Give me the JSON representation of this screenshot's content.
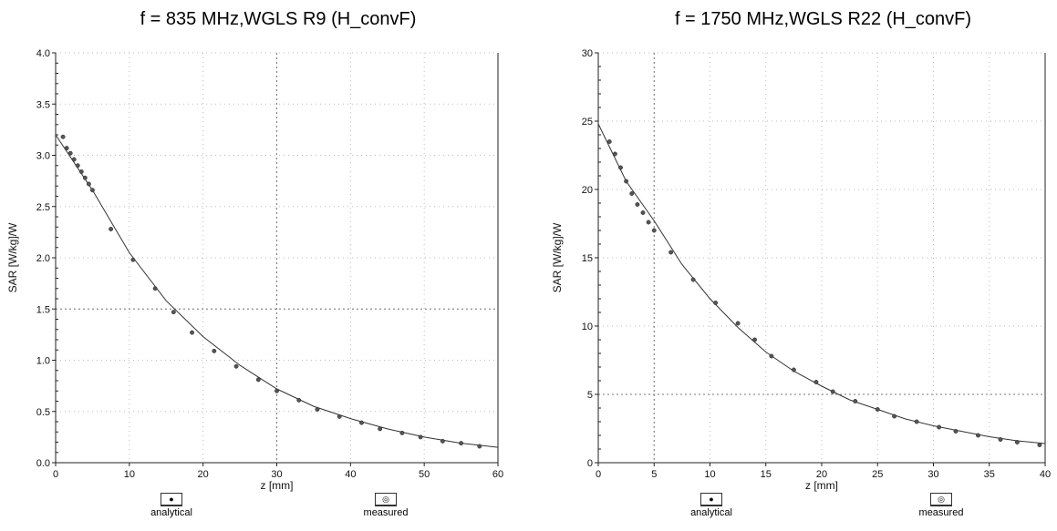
{
  "charts": [
    {
      "title": "f = 835 MHz,WGLS R9 (H_convF)",
      "legend": {
        "analytical": "analytical",
        "measured": "measured"
      }
    },
    {
      "title": "f = 1750 MHz,WGLS R22 (H_convF)",
      "legend": {
        "analytical": "analytical",
        "measured": "measured"
      }
    }
  ],
  "chart_data": [
    {
      "type": "line",
      "title": "f = 835 MHz,WGLS R9 (H_convF)",
      "xlabel": "z [mm]",
      "ylabel": "SAR [W/kg]/W",
      "xlim": [
        0,
        60
      ],
      "ylim": [
        0,
        4.0
      ],
      "xticks": [
        "0",
        "10",
        "20",
        "30",
        "40",
        "50",
        "60"
      ],
      "yticks": [
        "0.0",
        "0.5",
        "1.0",
        "1.5",
        "2.0",
        "2.5",
        "3.0",
        "3.5",
        "4.0"
      ],
      "grid": "dotted",
      "series": [
        {
          "name": "measured",
          "x": [
            1.0,
            1.5,
            2.0,
            2.5,
            3.0,
            3.5,
            4.0,
            4.5,
            5.0,
            7.5,
            10.5,
            13.5,
            16.0,
            18.5,
            21.5,
            24.5,
            27.5,
            30.0,
            33.0,
            35.5,
            38.5,
            41.5,
            44.0,
            47.0,
            49.5,
            52.5,
            55.0,
            57.5
          ],
          "y": [
            3.18,
            3.07,
            3.02,
            2.96,
            2.9,
            2.84,
            2.78,
            2.72,
            2.66,
            2.28,
            1.98,
            1.7,
            1.47,
            1.27,
            1.09,
            0.94,
            0.81,
            0.7,
            0.61,
            0.52,
            0.45,
            0.39,
            0.33,
            0.29,
            0.25,
            0.21,
            0.19,
            0.16
          ]
        },
        {
          "name": "analytical",
          "x": [
            0,
            5,
            10,
            15,
            20,
            25,
            30,
            35,
            40,
            45,
            50,
            55,
            60
          ],
          "y": [
            3.2,
            2.66,
            2.05,
            1.58,
            1.23,
            0.95,
            0.72,
            0.55,
            0.43,
            0.33,
            0.25,
            0.19,
            0.15
          ]
        }
      ],
      "reference_lines": {
        "x": 30,
        "y": 1.5
      }
    },
    {
      "type": "line",
      "title": "f = 1750 MHz,WGLS R22 (H_convF)",
      "xlabel": "z [mm]",
      "ylabel": "SAR [W/kg]/W",
      "xlim": [
        0,
        40
      ],
      "ylim": [
        0,
        30
      ],
      "xticks": [
        "0",
        "5",
        "10",
        "15",
        "20",
        "25",
        "30",
        "35",
        "40"
      ],
      "yticks": [
        "0",
        "5",
        "10",
        "15",
        "20",
        "25",
        "30"
      ],
      "grid": "dotted",
      "series": [
        {
          "name": "measured",
          "x": [
            1.0,
            1.5,
            2.0,
            2.5,
            3.0,
            3.5,
            4.0,
            4.5,
            5.0,
            6.5,
            8.5,
            10.5,
            12.5,
            14.0,
            15.5,
            17.5,
            19.5,
            21.0,
            23.0,
            25.0,
            26.5,
            28.5,
            30.5,
            32.0,
            34.0,
            36.0,
            37.5,
            39.5
          ],
          "y": [
            23.5,
            22.6,
            21.6,
            20.6,
            19.7,
            18.9,
            18.3,
            17.6,
            17.0,
            15.4,
            13.4,
            11.7,
            10.2,
            9.0,
            7.8,
            6.8,
            5.9,
            5.2,
            4.5,
            3.9,
            3.4,
            3.0,
            2.6,
            2.3,
            2.0,
            1.7,
            1.5,
            1.3
          ]
        },
        {
          "name": "analytical",
          "x": [
            0,
            2.5,
            5,
            7.5,
            10,
            12.5,
            15,
            17.5,
            20,
            22.5,
            25,
            27.5,
            30,
            32.5,
            35,
            37.5,
            40
          ],
          "y": [
            24.8,
            20.6,
            17.7,
            14.5,
            12.0,
            9.9,
            8.1,
            6.7,
            5.6,
            4.6,
            3.9,
            3.2,
            2.7,
            2.3,
            1.9,
            1.6,
            1.4
          ]
        }
      ],
      "reference_lines": {
        "x": 5,
        "y": 5
      }
    }
  ]
}
